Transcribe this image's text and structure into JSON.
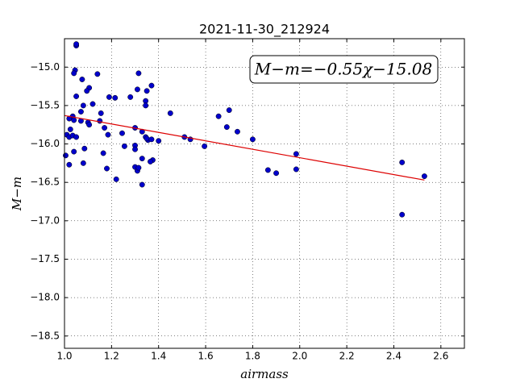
{
  "chart_data": {
    "type": "scatter",
    "title": "2021-11-30_212924",
    "xlabel": "airmass",
    "ylabel": "M−m",
    "annotation": "M−m=−0.55χ−15.08",
    "xlim": [
      1.0,
      2.7
    ],
    "ylim": [
      -18.66,
      -14.63
    ],
    "xticks": [
      {
        "value": 1.0,
        "label": "1.0"
      },
      {
        "value": 1.2,
        "label": "1.2"
      },
      {
        "value": 1.4,
        "label": "1.4"
      },
      {
        "value": 1.6,
        "label": "1.6"
      },
      {
        "value": 1.8,
        "label": "1.8"
      },
      {
        "value": 2.0,
        "label": "2.0"
      },
      {
        "value": 2.2,
        "label": "2.2"
      },
      {
        "value": 2.4,
        "label": "2.4"
      },
      {
        "value": 2.6,
        "label": "2.6"
      }
    ],
    "yticks": [
      {
        "value": -15.0,
        "label": "−15.0"
      },
      {
        "value": -15.5,
        "label": "−15.5"
      },
      {
        "value": -16.0,
        "label": "−16.0"
      },
      {
        "value": -16.5,
        "label": "−16.5"
      },
      {
        "value": -17.0,
        "label": "−17.0"
      },
      {
        "value": -17.5,
        "label": "−17.5"
      },
      {
        "value": -18.0,
        "label": "−18.0"
      },
      {
        "value": -18.5,
        "label": "−18.5"
      }
    ],
    "grid": true,
    "color": "#0000cc",
    "x": [
      1.05,
      1.05,
      1.045,
      1.04,
      1.315,
      1.14,
      1.075,
      1.37,
      1.105,
      1.095,
      1.31,
      1.35,
      1.05,
      1.19,
      1.215,
      1.28,
      1.345,
      1.345,
      1.12,
      1.08,
      1.45,
      1.7,
      1.655,
      1.155,
      1.07,
      1.035,
      1.02,
      1.04,
      1.07,
      1.1,
      1.105,
      1.15,
      1.17,
      1.025,
      1.3,
      1.33,
      1.69,
      1.735,
      1.245,
      1.185,
      1.01,
      1.02,
      1.035,
      1.05,
      1.345,
      1.355,
      1.35,
      1.37,
      1.4,
      1.51,
      1.535,
      1.8,
      1.3,
      1.3,
      1.255,
      1.595,
      1.085,
      1.04,
      1.165,
      1.005,
      1.985,
      1.33,
      1.375,
      1.365,
      1.08,
      1.02,
      2.435,
      1.3,
      1.31,
      1.315,
      1.18,
      1.865,
      1.9,
      1.985,
      2.53,
      1.22,
      1.33,
      2.435
    ],
    "values": [
      -14.72,
      -14.7,
      -15.04,
      -15.08,
      -15.08,
      -15.09,
      -15.16,
      -15.24,
      -15.27,
      -15.31,
      -15.29,
      -15.31,
      -15.38,
      -15.39,
      -15.4,
      -15.39,
      -15.44,
      -15.5,
      -15.48,
      -15.5,
      -15.6,
      -15.56,
      -15.64,
      -15.6,
      -15.58,
      -15.64,
      -15.67,
      -15.69,
      -15.7,
      -15.72,
      -15.75,
      -15.7,
      -15.79,
      -15.81,
      -15.79,
      -15.84,
      -15.78,
      -15.84,
      -15.86,
      -15.88,
      -15.88,
      -15.91,
      -15.89,
      -15.91,
      -15.91,
      -15.95,
      -15.93,
      -15.94,
      -15.96,
      -15.91,
      -15.94,
      -15.94,
      -16.02,
      -16.07,
      -16.03,
      -16.03,
      -16.06,
      -16.1,
      -16.12,
      -16.15,
      -16.13,
      -16.19,
      -16.21,
      -16.23,
      -16.25,
      -16.27,
      -16.24,
      -16.3,
      -16.35,
      -16.31,
      -16.32,
      -16.34,
      -16.38,
      -16.33,
      -16.42,
      -16.46,
      -16.53,
      -16.92
    ],
    "fit": {
      "x": [
        1.0,
        2.53
      ],
      "values": [
        -15.63,
        -16.47
      ],
      "color": "#dd0000"
    }
  }
}
